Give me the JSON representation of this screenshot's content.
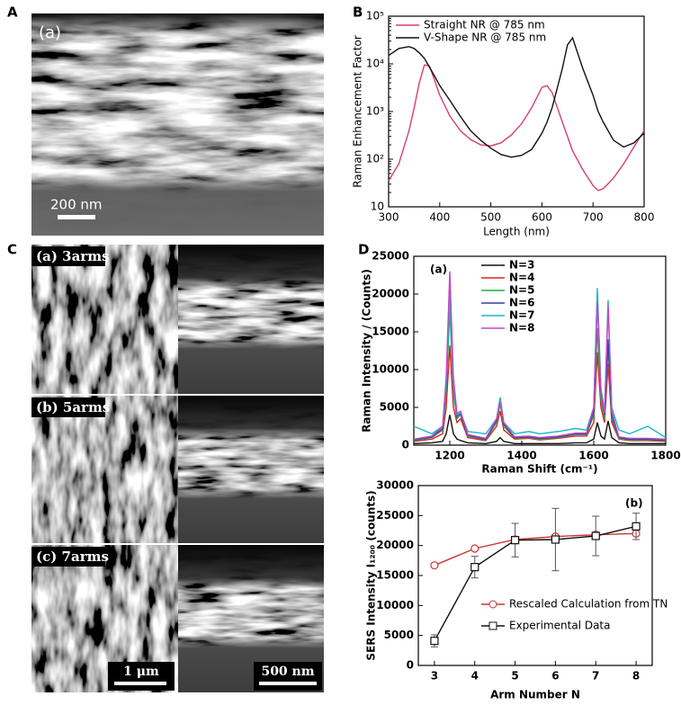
{
  "panels": {
    "A": {
      "letter": "A",
      "image_label": "(a)",
      "scale_bar": "200 nm"
    },
    "C": {
      "letter": "C",
      "images": [
        "(a) 3arms",
        "(b) 5arms",
        "(c) 7arms"
      ],
      "scale_bars": [
        "1 μm",
        "500 nm"
      ]
    }
  },
  "chart_data": [
    {
      "panel": "B",
      "type": "line",
      "xlabel": "Length (nm)",
      "ylabel": "Raman Enhancement Factor",
      "x": [
        300,
        320,
        340,
        350,
        360,
        370,
        380,
        390,
        400,
        420,
        440,
        460,
        480,
        500,
        520,
        540,
        560,
        580,
        600,
        610,
        620,
        640,
        650,
        660,
        680,
        700,
        710,
        720,
        740,
        760,
        780,
        800
      ],
      "xlim": [
        300,
        800
      ],
      "xticks": [
        300,
        400,
        500,
        600,
        700,
        800
      ],
      "yscale": "log",
      "ylim": [
        10,
        100000
      ],
      "yticks": [
        10,
        {
          "value": 100,
          "label": "10²"
        },
        {
          "value": 1000,
          "label": "10³"
        },
        {
          "value": 10000,
          "label": "10⁴"
        },
        {
          "value": 100000,
          "label": "10⁵"
        }
      ],
      "legend": "upper left",
      "series": [
        {
          "name": "Straight NR @ 785 nm",
          "color": "#d8406a",
          "values": [
            35,
            80,
            400,
            1200,
            4000,
            9500,
            9000,
            4500,
            2200,
            800,
            400,
            260,
            200,
            190,
            220,
            320,
            550,
            1200,
            3200,
            3500,
            2500,
            600,
            300,
            150,
            60,
            28,
            22,
            24,
            40,
            80,
            180,
            400
          ]
        },
        {
          "name": "V-Shape NR @ 785 nm",
          "color": "#111111",
          "values": [
            15000,
            21000,
            23000,
            21000,
            17000,
            13000,
            8500,
            5500,
            3500,
            1700,
            800,
            400,
            250,
            170,
            125,
            110,
            120,
            160,
            350,
            600,
            1200,
            8000,
            25000,
            35000,
            8000,
            2200,
            1000,
            600,
            250,
            180,
            220,
            350
          ]
        }
      ]
    },
    {
      "panel": "D",
      "annotation": "(a)",
      "type": "line",
      "xlabel": "Raman Shift (cm⁻¹)",
      "ylabel": "Raman Intensity / (Counts)",
      "x": [
        1100,
        1150,
        1180,
        1190,
        1200,
        1210,
        1220,
        1230,
        1250,
        1300,
        1330,
        1340,
        1350,
        1380,
        1420,
        1450,
        1500,
        1550,
        1580,
        1600,
        1610,
        1620,
        1630,
        1640,
        1650,
        1670,
        1700,
        1750,
        1800
      ],
      "xlim": [
        1100,
        1800
      ],
      "xticks": [
        1200,
        1400,
        1600,
        1800
      ],
      "ylim": [
        0,
        25000
      ],
      "yticks": [
        0,
        5000,
        10000,
        15000,
        20000,
        25000
      ],
      "legend": "upper center",
      "series": [
        {
          "name": "N=3",
          "color": "#111111",
          "values": [
            200,
            300,
            500,
            1500,
            4000,
            1500,
            800,
            600,
            300,
            200,
            500,
            1000,
            500,
            200,
            200,
            200,
            200,
            300,
            300,
            800,
            3000,
            1200,
            800,
            3200,
            1000,
            300,
            200,
            200,
            200
          ]
        },
        {
          "name": "N=4",
          "color": "#e0201f",
          "values": [
            500,
            800,
            1500,
            5000,
            13200,
            5000,
            3000,
            3500,
            1000,
            600,
            2500,
            4500,
            2000,
            800,
            900,
            700,
            900,
            1200,
            1200,
            3000,
            12300,
            5000,
            3000,
            10800,
            3000,
            800,
            600,
            600,
            500
          ]
        },
        {
          "name": "N=5",
          "color": "#1fae4a",
          "values": [
            600,
            1000,
            2000,
            7000,
            18000,
            7000,
            3500,
            4000,
            1200,
            700,
            3000,
            5500,
            2500,
            900,
            1000,
            800,
            1000,
            1400,
            1400,
            4000,
            15500,
            6000,
            3500,
            13000,
            3500,
            900,
            700,
            700,
            600
          ]
        },
        {
          "name": "N=6",
          "color": "#3b3ba8",
          "values": [
            700,
            1100,
            2200,
            8000,
            21000,
            8000,
            3800,
            4200,
            1300,
            800,
            3300,
            6200,
            2800,
            1000,
            1100,
            900,
            1100,
            1500,
            1500,
            4500,
            20000,
            7000,
            4000,
            14000,
            4000,
            1000,
            800,
            800,
            700
          ]
        },
        {
          "name": "N=7",
          "color": "#19b7c8",
          "values": [
            2500,
            1500,
            2500,
            8000,
            20000,
            8000,
            4000,
            4300,
            1800,
            1500,
            3500,
            6300,
            3000,
            1500,
            1800,
            1500,
            1800,
            2200,
            2000,
            5000,
            20800,
            7500,
            4500,
            19200,
            5000,
            2000,
            1500,
            2500,
            1000
          ]
        },
        {
          "name": "N=8",
          "color": "#c846c8",
          "values": [
            800,
            1200,
            2500,
            9000,
            23000,
            9000,
            4200,
            4500,
            1400,
            900,
            3500,
            5800,
            3000,
            1100,
            1200,
            1000,
            1200,
            1600,
            1600,
            5000,
            19000,
            7000,
            4200,
            18500,
            4500,
            1100,
            900,
            900,
            800
          ]
        }
      ]
    },
    {
      "annotation": "(b)",
      "type": "line",
      "xlabel": "Arm Number N",
      "ylabel": "SERS Intensity I₁₂₀₀ (counts)",
      "x": [
        3,
        4,
        5,
        6,
        7,
        8
      ],
      "xlim": [
        2.6,
        8.4
      ],
      "xticks": [
        3,
        4,
        5,
        6,
        7,
        8
      ],
      "ylim": [
        0,
        30000
      ],
      "yticks": [
        0,
        5000,
        10000,
        15000,
        20000,
        25000,
        30000
      ],
      "legend": "lower right",
      "series": [
        {
          "name": "Rescaled Calculation from TN",
          "color": "#cc3333",
          "marker": "circle",
          "values": [
            16700,
            19500,
            21000,
            21500,
            21800,
            22000
          ]
        },
        {
          "name": "Experimental Data",
          "color": "#111111",
          "marker": "square",
          "values": [
            4100,
            16400,
            20900,
            21000,
            21600,
            23200
          ],
          "errors": [
            1000,
            1800,
            2800,
            5200,
            3300,
            2200
          ]
        }
      ]
    }
  ]
}
